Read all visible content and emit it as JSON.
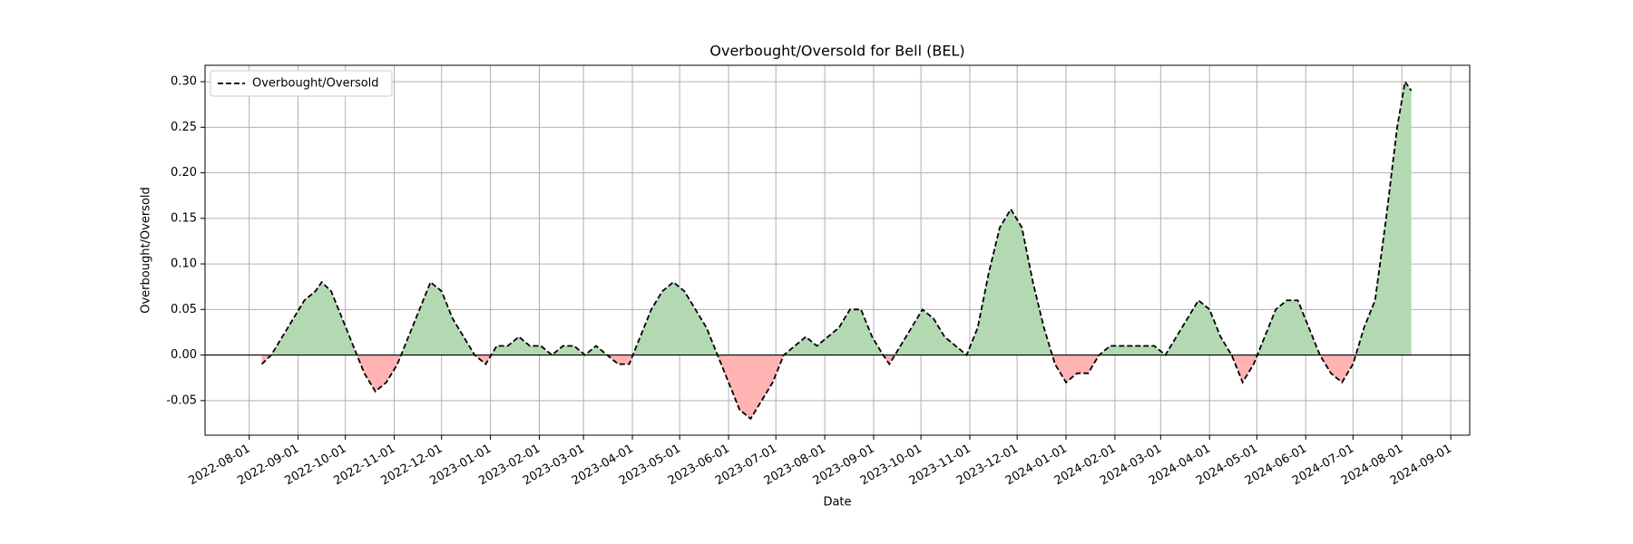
{
  "chart_data": {
    "type": "area",
    "title": "Overbought/Oversold for Bell (BEL)",
    "xlabel": "Date",
    "ylabel": "Overbought/Oversold",
    "legend": "upper left",
    "grid": true,
    "zero_line": true,
    "positive_color": "#b3d9b3",
    "negative_color": "#ffb3b3",
    "x": [
      "2022-08-09",
      "2022-08-15",
      "2022-08-22",
      "2022-08-29",
      "2022-09-05",
      "2022-09-12",
      "2022-09-16",
      "2022-09-22",
      "2022-09-29",
      "2022-10-06",
      "2022-10-13",
      "2022-10-20",
      "2022-10-27",
      "2022-11-03",
      "2022-11-10",
      "2022-11-17",
      "2022-11-24",
      "2022-12-01",
      "2022-12-08",
      "2022-12-15",
      "2022-12-22",
      "2022-12-29",
      "2023-01-05",
      "2023-01-12",
      "2023-01-19",
      "2023-01-26",
      "2023-02-02",
      "2023-02-09",
      "2023-02-16",
      "2023-02-23",
      "2023-03-02",
      "2023-03-09",
      "2023-03-16",
      "2023-03-23",
      "2023-03-30",
      "2023-04-06",
      "2023-04-13",
      "2023-04-20",
      "2023-04-27",
      "2023-05-04",
      "2023-05-11",
      "2023-05-18",
      "2023-05-25",
      "2023-06-01",
      "2023-06-08",
      "2023-06-15",
      "2023-06-22",
      "2023-06-29",
      "2023-07-06",
      "2023-07-13",
      "2023-07-20",
      "2023-07-27",
      "2023-08-03",
      "2023-08-10",
      "2023-08-17",
      "2023-08-24",
      "2023-08-31",
      "2023-09-07",
      "2023-09-11",
      "2023-09-18",
      "2023-09-25",
      "2023-10-02",
      "2023-10-09",
      "2023-10-16",
      "2023-10-23",
      "2023-10-30",
      "2023-11-06",
      "2023-11-13",
      "2023-11-20",
      "2023-11-27",
      "2023-12-04",
      "2023-12-11",
      "2023-12-18",
      "2023-12-25",
      "2024-01-01",
      "2024-01-08",
      "2024-01-15",
      "2024-01-22",
      "2024-01-29",
      "2024-02-05",
      "2024-02-12",
      "2024-02-19",
      "2024-02-26",
      "2024-03-04",
      "2024-03-11",
      "2024-03-18",
      "2024-03-25",
      "2024-04-01",
      "2024-04-08",
      "2024-04-15",
      "2024-04-22",
      "2024-04-29",
      "2024-05-06",
      "2024-05-13",
      "2024-05-20",
      "2024-05-27",
      "2024-06-03",
      "2024-06-10",
      "2024-06-17",
      "2024-06-24",
      "2024-07-01",
      "2024-07-08",
      "2024-07-15",
      "2024-07-22",
      "2024-07-29",
      "2024-08-03",
      "2024-08-07"
    ],
    "series": [
      {
        "name": "Overbought/Oversold",
        "color": "#000000",
        "values": [
          -0.01,
          0.0,
          0.02,
          0.04,
          0.06,
          0.07,
          0.08,
          0.07,
          0.04,
          0.01,
          -0.02,
          -0.04,
          -0.03,
          -0.01,
          0.02,
          0.05,
          0.08,
          0.07,
          0.04,
          0.02,
          0.0,
          -0.01,
          0.01,
          0.01,
          0.02,
          0.01,
          0.01,
          0.0,
          0.01,
          0.01,
          0.0,
          0.01,
          0.0,
          -0.01,
          -0.01,
          0.02,
          0.05,
          0.07,
          0.08,
          0.07,
          0.05,
          0.03,
          0.0,
          -0.03,
          -0.06,
          -0.07,
          -0.05,
          -0.03,
          0.0,
          0.01,
          0.02,
          0.01,
          0.02,
          0.03,
          0.05,
          0.05,
          0.02,
          0.0,
          -0.01,
          0.01,
          0.03,
          0.05,
          0.04,
          0.02,
          0.01,
          0.0,
          0.03,
          0.09,
          0.14,
          0.16,
          0.14,
          0.08,
          0.03,
          -0.01,
          -0.03,
          -0.02,
          -0.02,
          0.0,
          0.01,
          0.01,
          0.01,
          0.01,
          0.01,
          0.0,
          0.02,
          0.04,
          0.06,
          0.05,
          0.02,
          0.0,
          -0.03,
          -0.01,
          0.02,
          0.05,
          0.06,
          0.06,
          0.03,
          0.0,
          -0.02,
          -0.03,
          -0.01,
          0.03,
          0.06,
          0.15,
          0.25,
          0.3,
          0.29
        ]
      }
    ],
    "xlim": [
      "2022-07-04",
      "2024-09-13"
    ],
    "xticks": [
      "2022-08-01",
      "2022-09-01",
      "2022-10-01",
      "2022-11-01",
      "2022-12-01",
      "2023-01-01",
      "2023-02-01",
      "2023-03-01",
      "2023-04-01",
      "2023-05-01",
      "2023-06-01",
      "2023-07-01",
      "2023-08-01",
      "2023-09-01",
      "2023-10-01",
      "2023-11-01",
      "2023-12-01",
      "2024-01-01",
      "2024-02-01",
      "2024-03-01",
      "2024-04-01",
      "2024-05-01",
      "2024-06-01",
      "2024-07-01",
      "2024-08-01",
      "2024-09-01"
    ],
    "ylim": [
      -0.088,
      0.318
    ],
    "yticks": [
      {
        "value": -0.05,
        "label": "-0.05"
      },
      {
        "value": 0,
        "label": "0.00"
      },
      {
        "value": 0.05,
        "label": "0.05"
      },
      {
        "value": 0.1,
        "label": "0.10"
      },
      {
        "value": 0.15,
        "label": "0.15"
      },
      {
        "value": 0.2,
        "label": "0.20"
      },
      {
        "value": 0.25,
        "label": "0.25"
      },
      {
        "value": 0.3,
        "label": "0.30"
      }
    ]
  }
}
